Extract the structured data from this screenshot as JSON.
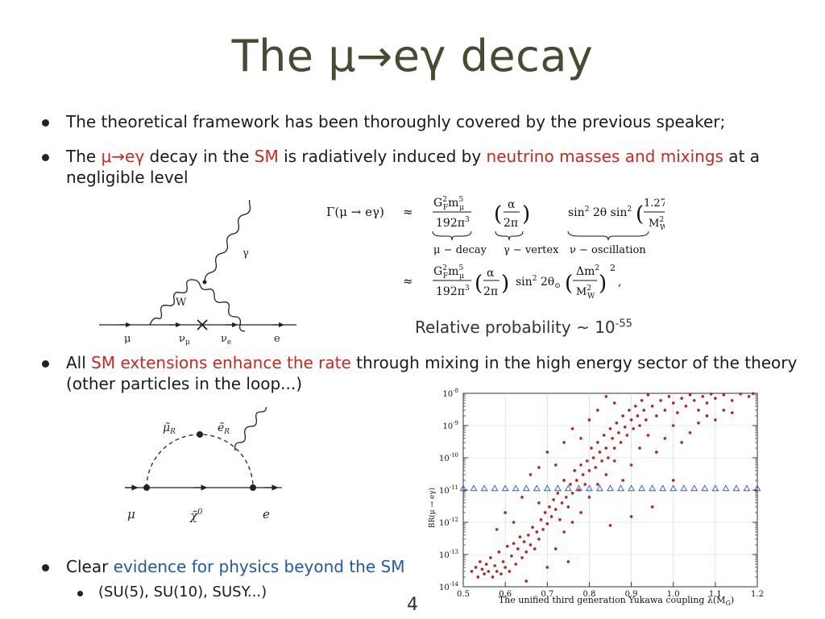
{
  "title": "The μ→eγ decay",
  "bullets": {
    "b1": "The theoretical framework has been thoroughly covered by the previous speaker;",
    "b2_pre": "The ",
    "b2_mu": "μ→eγ",
    "b2_mid1": " decay in the ",
    "b2_sm": "SM",
    "b2_mid2": " is radiatively induced by ",
    "b2_nm": "neutrino masses and mixings",
    "b2_post": " at a",
    "b2_line2": "negligible level",
    "b3_pre": "All ",
    "b3_red": "SM extensions enhance the rate",
    "b3_post": " through mixing in the high energy sector of the theory",
    "b3_line2": "(other particles in the loop...)",
    "b4_pre": "Clear ",
    "b4_blue": "evidence for physics beyond the SM",
    "b4_sub": "(SU(5), SU(10), SUSY...)"
  },
  "relprob": {
    "text": "Relative probability ~ 10",
    "exp": "-55"
  },
  "feynman1": {
    "gamma": "γ",
    "w": "W",
    "mu": "μ",
    "nu_mu": "ν",
    "nu_mu_sub": "μ",
    "nu_e": "ν",
    "nu_e_sub": "e",
    "e": "e"
  },
  "feynman2": {
    "mu_r": "μ̃",
    "mu_r_sub": "R",
    "e_r": "ẽ",
    "e_r_sub": "R",
    "mu": "μ",
    "chi": "χ̃",
    "chi_sup": "0",
    "e": "e"
  },
  "formula": {
    "gamma_lhs": "Γ(μ → eγ)",
    "approx": "≈",
    "label_mu": "μ − decay",
    "label_gamma": "γ − vertex",
    "label_nu": "ν − oscillation"
  },
  "page_number": "4",
  "chart_data": {
    "type": "scatter",
    "xlabel": "The unified third generation Yukawa coupling λ(M",
    "xlabel_sub": "G",
    "xlabel_end": ")",
    "ylabel": "BR(μ → eγ)",
    "log_y": true,
    "xlim": [
      0.5,
      1.2
    ],
    "ylim": [
      1e-14,
      1e-08
    ],
    "x_ticks": [
      "0.5",
      "0.6",
      "0.7",
      "0.8",
      "0.9",
      "1.0",
      "1.1",
      "1.2"
    ],
    "y_ticks": [
      "10",
      "10",
      "10",
      "10",
      "10",
      "10",
      "10"
    ],
    "y_tick_exps": [
      "-14",
      "-13",
      "-12",
      "-11",
      "-10",
      "-9",
      "-8"
    ],
    "series": [
      {
        "marker": "triangle",
        "color": "#2a52be",
        "points": [
          [
            0.5,
            1.1e-11
          ],
          [
            0.525,
            1.1e-11
          ],
          [
            0.55,
            1.1e-11
          ],
          [
            0.575,
            1.1e-11
          ],
          [
            0.6,
            1.1e-11
          ],
          [
            0.625,
            1.1e-11
          ],
          [
            0.65,
            1.1e-11
          ],
          [
            0.675,
            1.1e-11
          ],
          [
            0.7,
            1.1e-11
          ],
          [
            0.725,
            1.1e-11
          ],
          [
            0.75,
            1.1e-11
          ],
          [
            0.775,
            1.1e-11
          ],
          [
            0.8,
            1.1e-11
          ],
          [
            0.825,
            1.1e-11
          ],
          [
            0.85,
            1.1e-11
          ],
          [
            0.875,
            1.1e-11
          ],
          [
            0.9,
            1.1e-11
          ],
          [
            0.925,
            1.1e-11
          ],
          [
            0.95,
            1.1e-11
          ],
          [
            0.975,
            1.1e-11
          ],
          [
            1.0,
            1.1e-11
          ],
          [
            1.025,
            1.1e-11
          ],
          [
            1.05,
            1.1e-11
          ],
          [
            1.075,
            1.1e-11
          ],
          [
            1.1,
            1.1e-11
          ],
          [
            1.125,
            1.1e-11
          ],
          [
            1.15,
            1.1e-11
          ],
          [
            1.175,
            1.1e-11
          ],
          [
            1.2,
            1.1e-11
          ]
        ]
      },
      {
        "marker": "dot",
        "color": "#b8221a",
        "points": [
          [
            0.52,
            3e-14
          ],
          [
            0.53,
            4e-14
          ],
          [
            0.535,
            2e-14
          ],
          [
            0.54,
            6e-14
          ],
          [
            0.545,
            3.5e-14
          ],
          [
            0.55,
            2.5e-14
          ],
          [
            0.555,
            5e-14
          ],
          [
            0.56,
            3e-14
          ],
          [
            0.565,
            8e-14
          ],
          [
            0.57,
            2e-14
          ],
          [
            0.575,
            4.5e-14
          ],
          [
            0.58,
            3e-14
          ],
          [
            0.585,
            1.2e-13
          ],
          [
            0.59,
            2.5e-14
          ],
          [
            0.595,
            6e-14
          ],
          [
            0.6,
            4e-14
          ],
          [
            0.605,
            1.8e-13
          ],
          [
            0.61,
            3e-14
          ],
          [
            0.615,
            9e-14
          ],
          [
            0.62,
            2.2e-13
          ],
          [
            0.625,
            5e-14
          ],
          [
            0.63,
            1.5e-13
          ],
          [
            0.635,
            3.5e-13
          ],
          [
            0.64,
            8e-14
          ],
          [
            0.645,
            2.5e-13
          ],
          [
            0.65,
            1.2e-13
          ],
          [
            0.655,
            4e-13
          ],
          [
            0.66,
            2e-13
          ],
          [
            0.665,
            7e-13
          ],
          [
            0.67,
            1.5e-13
          ],
          [
            0.675,
            5e-13
          ],
          [
            0.68,
            3e-13
          ],
          [
            0.685,
            1.2e-12
          ],
          [
            0.69,
            6e-13
          ],
          [
            0.695,
            2e-12
          ],
          [
            0.7,
            9e-13
          ],
          [
            0.705,
            3e-12
          ],
          [
            0.71,
            1.5e-12
          ],
          [
            0.715,
            5e-12
          ],
          [
            0.72,
            2.5e-12
          ],
          [
            0.725,
            8e-12
          ],
          [
            0.73,
            1.2e-12
          ],
          [
            0.735,
            4e-12
          ],
          [
            0.74,
            2e-11
          ],
          [
            0.745,
            6e-12
          ],
          [
            0.75,
            3e-12
          ],
          [
            0.755,
            1.5e-11
          ],
          [
            0.76,
            8e-12
          ],
          [
            0.765,
            4e-11
          ],
          [
            0.77,
            2e-11
          ],
          [
            0.775,
            1e-11
          ],
          [
            0.78,
            6e-11
          ],
          [
            0.785,
            3e-11
          ],
          [
            0.79,
            1.5e-11
          ],
          [
            0.795,
            8e-11
          ],
          [
            0.8,
            4e-11
          ],
          [
            0.805,
            2e-10
          ],
          [
            0.81,
            1e-10
          ],
          [
            0.815,
            5e-11
          ],
          [
            0.82,
            3e-10
          ],
          [
            0.825,
            1.5e-10
          ],
          [
            0.83,
            8e-11
          ],
          [
            0.835,
            5e-10
          ],
          [
            0.84,
            2e-10
          ],
          [
            0.845,
            1e-10
          ],
          [
            0.85,
            8e-10
          ],
          [
            0.855,
            4e-10
          ],
          [
            0.86,
            2e-10
          ],
          [
            0.865,
            1.2e-09
          ],
          [
            0.87,
            6e-10
          ],
          [
            0.875,
            3e-10
          ],
          [
            0.88,
            2e-09
          ],
          [
            0.885,
            9e-10
          ],
          [
            0.89,
            5e-10
          ],
          [
            0.895,
            3e-09
          ],
          [
            0.9,
            1.5e-09
          ],
          [
            0.905,
            8e-10
          ],
          [
            0.91,
            4e-09
          ],
          [
            0.915,
            2e-09
          ],
          [
            0.92,
            1e-09
          ],
          [
            0.925,
            6e-09
          ],
          [
            0.93,
            3e-09
          ],
          [
            0.935,
            1.5e-09
          ],
          [
            0.94,
            9e-09
          ],
          [
            0.95,
            4e-09
          ],
          [
            0.96,
            2e-09
          ],
          [
            0.97,
            6e-09
          ],
          [
            0.98,
            3e-09
          ],
          [
            0.99,
            8e-09
          ],
          [
            1.0,
            5e-09
          ],
          [
            1.01,
            2.5e-09
          ],
          [
            1.02,
            7e-09
          ],
          [
            1.03,
            4e-09
          ],
          [
            1.04,
            9e-09
          ],
          [
            1.05,
            6e-09
          ],
          [
            1.06,
            3e-09
          ],
          [
            1.07,
            8e-09
          ],
          [
            1.08,
            5e-09
          ],
          [
            1.09,
            9.5e-09
          ],
          [
            1.1,
            7e-09
          ],
          [
            1.12,
            9e-09
          ],
          [
            1.14,
            6e-09
          ],
          [
            1.16,
            9.5e-09
          ],
          [
            1.18,
            8e-09
          ],
          [
            1.19,
            9.8e-09
          ],
          [
            0.6,
            2e-12
          ],
          [
            0.64,
            6e-12
          ],
          [
            0.66,
            3e-11
          ],
          [
            0.68,
            5e-11
          ],
          [
            0.7,
            1.5e-10
          ],
          [
            0.72,
            6e-11
          ],
          [
            0.74,
            3e-10
          ],
          [
            0.76,
            8e-10
          ],
          [
            0.78,
            4e-10
          ],
          [
            0.8,
            1.5e-09
          ],
          [
            0.82,
            3e-09
          ],
          [
            0.84,
            8e-09
          ],
          [
            0.86,
            5e-09
          ],
          [
            0.72,
            1.5e-13
          ],
          [
            0.74,
            5e-13
          ],
          [
            0.76,
            1e-12
          ],
          [
            0.78,
            2e-12
          ],
          [
            0.8,
            6e-12
          ],
          [
            0.82,
            1.5e-11
          ],
          [
            0.84,
            3e-11
          ],
          [
            0.86,
            8e-11
          ],
          [
            0.88,
            2e-11
          ],
          [
            0.9,
            6e-11
          ],
          [
            0.92,
            2e-10
          ],
          [
            0.94,
            5e-10
          ],
          [
            0.96,
            1.5e-10
          ],
          [
            0.98,
            4e-10
          ],
          [
            1.0,
            1e-09
          ],
          [
            1.02,
            3e-10
          ],
          [
            1.04,
            6e-10
          ],
          [
            1.06,
            1.2e-09
          ],
          [
            1.08,
            2e-09
          ],
          [
            1.1,
            1.5e-09
          ],
          [
            1.12,
            3e-09
          ],
          [
            1.14,
            2.5e-09
          ],
          [
            1.0,
            2e-11
          ],
          [
            0.95,
            3e-12
          ],
          [
            0.9,
            1.5e-12
          ],
          [
            0.85,
            8e-13
          ],
          [
            0.7,
            4e-14
          ],
          [
            0.65,
            1.5e-14
          ],
          [
            0.58,
            6e-13
          ],
          [
            0.62,
            1e-12
          ],
          [
            0.68,
            4e-12
          ],
          [
            0.75,
            6e-14
          ]
        ]
      }
    ]
  }
}
